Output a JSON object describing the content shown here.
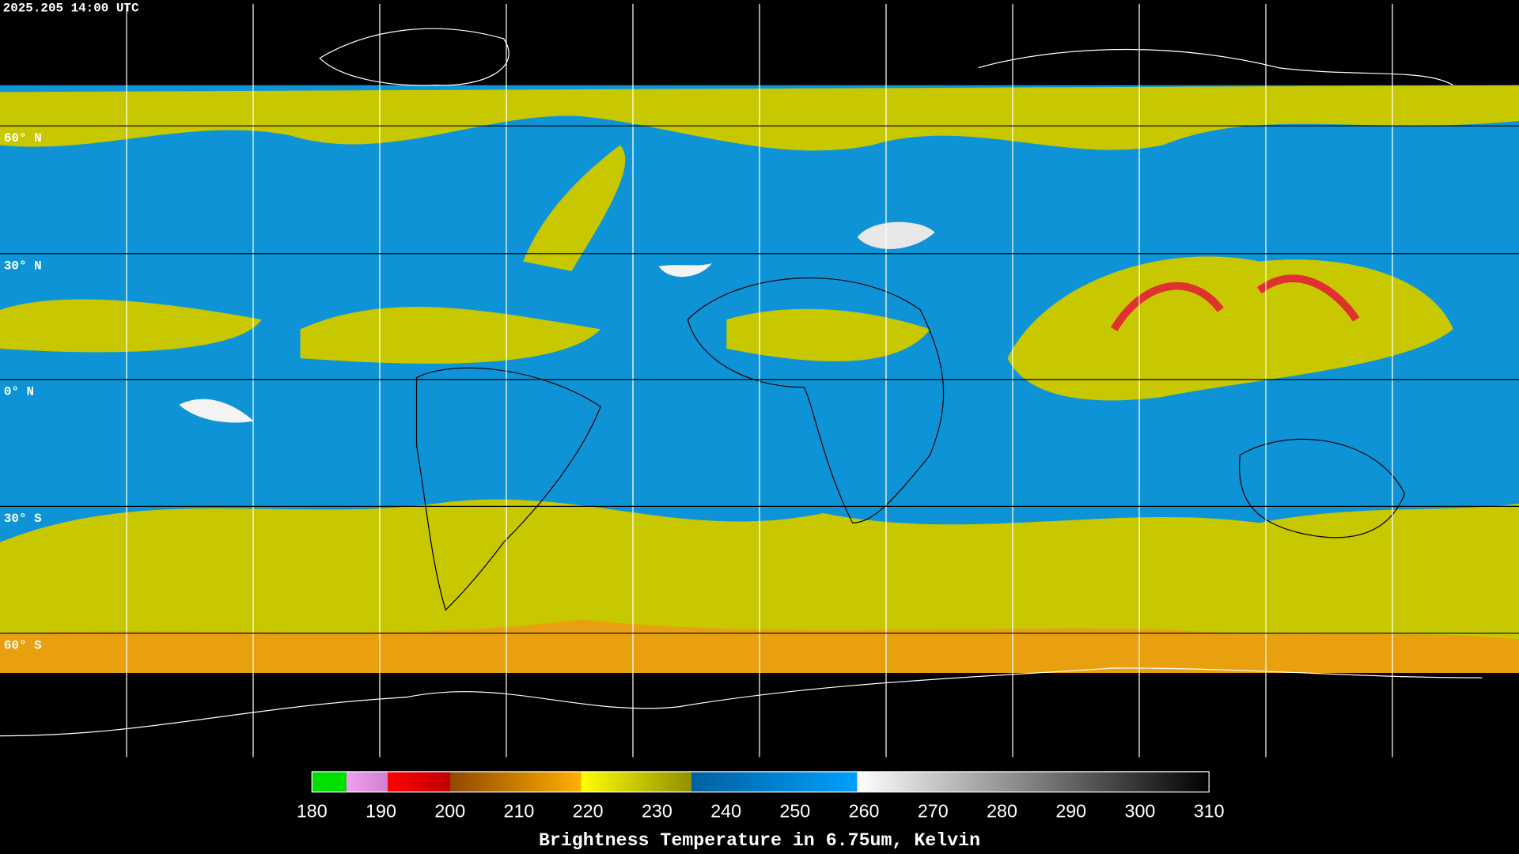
{
  "timestamp": "2025.205 14:00 UTC",
  "lat_labels": [
    "60° N",
    "30° N",
    "0° N",
    "30° S",
    "60° S"
  ],
  "colorbar": {
    "title": "Brightness Temperature in 6.75um, Kelvin",
    "range": [
      180,
      310
    ],
    "ticks": [
      180,
      190,
      200,
      210,
      220,
      230,
      240,
      250,
      260,
      270,
      280,
      290,
      300,
      310
    ],
    "segments": [
      {
        "from": 180,
        "to": 185,
        "color_start": "#00e000",
        "color_end": "#00e000"
      },
      {
        "from": 185,
        "to": 191,
        "color_start": "#f0a0f0",
        "color_end": "#d080d0"
      },
      {
        "from": 191,
        "to": 200,
        "color_start": "#ff0000",
        "color_end": "#c00000"
      },
      {
        "from": 200,
        "to": 219,
        "color_start": "#904800",
        "color_end": "#ffb000"
      },
      {
        "from": 219,
        "to": 235,
        "color_start": "#ffff00",
        "color_end": "#909000"
      },
      {
        "from": 235,
        "to": 259,
        "color_start": "#0060a0",
        "color_end": "#00a0ff"
      },
      {
        "from": 259,
        "to": 310,
        "color_start": "#ffffff",
        "color_end": "#000000"
      }
    ]
  }
}
